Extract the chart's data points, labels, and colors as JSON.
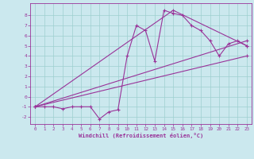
{
  "bg_color": "#cbe8ee",
  "line_color": "#993399",
  "marker": "+",
  "markersize": 3,
  "linewidth": 0.8,
  "xlabel": "Windchill (Refroidissement éolien,°C)",
  "xlim": [
    -0.5,
    23.5
  ],
  "ylim": [
    -2.7,
    9.2
  ],
  "xticks": [
    0,
    1,
    2,
    3,
    4,
    5,
    6,
    7,
    8,
    9,
    10,
    11,
    12,
    13,
    14,
    15,
    16,
    17,
    18,
    19,
    20,
    21,
    22,
    23
  ],
  "yticks": [
    -2,
    -1,
    0,
    1,
    2,
    3,
    4,
    5,
    6,
    7,
    8
  ],
  "grid_color": "#9ecfcf",
  "series": [
    {
      "x": [
        0,
        1,
        2,
        3,
        4,
        5,
        6,
        7,
        8,
        9,
        10,
        11,
        12,
        13,
        14,
        15,
        16,
        17,
        18,
        19,
        20,
        21,
        22,
        23
      ],
      "y": [
        -1,
        -1,
        -1,
        -1.2,
        -1,
        -1,
        -1,
        -2.2,
        -1.5,
        -1.3,
        4,
        7,
        6.5,
        3.5,
        8.5,
        8.2,
        8,
        7,
        6.5,
        5.5,
        4,
        5.2,
        5.5,
        5
      ],
      "has_marker": true
    },
    {
      "x": [
        0,
        23
      ],
      "y": [
        -1,
        5.5
      ],
      "has_marker": false
    },
    {
      "x": [
        0,
        15,
        23
      ],
      "y": [
        -1,
        8.5,
        5
      ],
      "has_marker": false
    },
    {
      "x": [
        0,
        23
      ],
      "y": [
        -1,
        4
      ],
      "has_marker": false
    }
  ]
}
